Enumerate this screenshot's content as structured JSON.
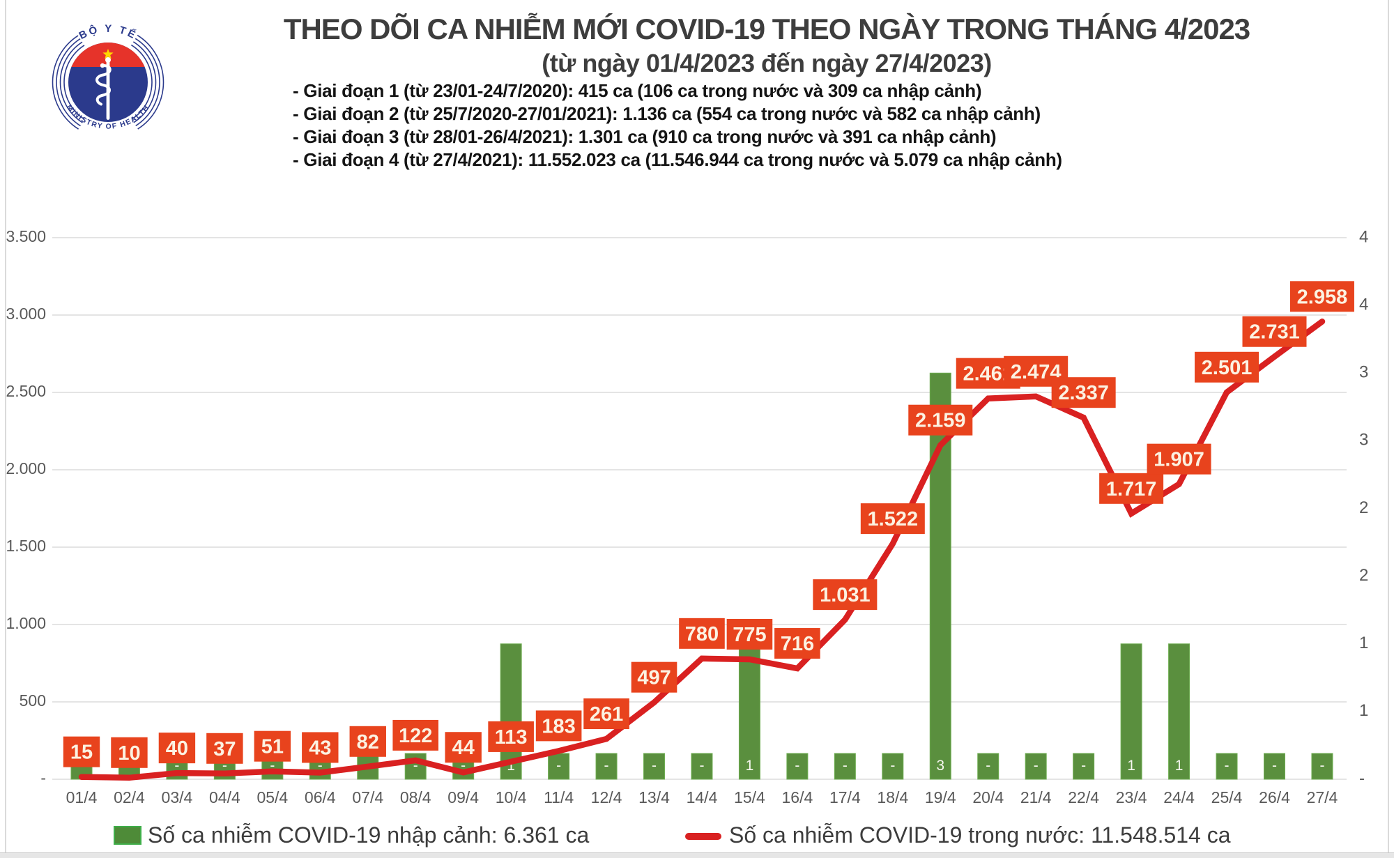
{
  "logo": {
    "top_text": "BỘ Y TẾ",
    "bottom_text": "MINISTRY OF HEALTH"
  },
  "header": {
    "title": "THEO DÕI CA NHIỄM MỚI COVID-19 THEO NGÀY TRONG THÁNG 4/2023",
    "subtitle": "(từ ngày 01/4/2023 đến ngày 27/4/2023)",
    "phases": [
      "- Giai đoạn 1 (từ 23/01-24/7/2020): 415 ca (106 ca trong nước và 309 ca nhập cảnh)",
      "- Giai đoạn 2 (từ 25/7/2020-27/01/2021): 1.136 ca (554 ca trong nước và 582 ca nhập cảnh)",
      "- Giai đoạn 3 (từ 28/01-26/4/2021): 1.301 ca (910 ca trong nước và 391 ca nhập cảnh)",
      "- Giai đoạn 4 (từ 27/4/2021): 11.552.023 ca (11.546.944 ca trong nước và 5.079 ca nhập cảnh)"
    ]
  },
  "chart_data": {
    "type": "combo-bar-line",
    "categories": [
      "01/4",
      "02/4",
      "03/4",
      "04/4",
      "05/4",
      "06/4",
      "07/4",
      "08/4",
      "09/4",
      "10/4",
      "11/4",
      "12/4",
      "13/4",
      "14/4",
      "15/4",
      "16/4",
      "17/4",
      "18/4",
      "19/4",
      "20/4",
      "21/4",
      "22/4",
      "23/4",
      "24/4",
      "25/4",
      "26/4",
      "27/4"
    ],
    "series": [
      {
        "name": "Số ca nhiễm COVID-19 nhập cảnh",
        "type": "bar",
        "axis": "right",
        "values": [
          0,
          0,
          0,
          0,
          0,
          0,
          0,
          0,
          0,
          1,
          0,
          0,
          0,
          0,
          1,
          0,
          0,
          0,
          3,
          0,
          0,
          0,
          1,
          1,
          0,
          0,
          0
        ],
        "labels": [
          "-",
          "-",
          "-",
          "-",
          "-",
          "-",
          "-",
          "-",
          "-",
          "1",
          "-",
          "-",
          "-",
          "-",
          "1",
          "-",
          "-",
          "-",
          "3",
          "-",
          "-",
          "-",
          "1",
          "1",
          "-",
          "-",
          "-"
        ]
      },
      {
        "name": "Số ca nhiễm COVID-19 trong nước",
        "type": "line",
        "axis": "left",
        "values": [
          15,
          10,
          40,
          37,
          51,
          43,
          82,
          122,
          44,
          113,
          183,
          261,
          497,
          780,
          775,
          716,
          1031,
          1522,
          2159,
          2461,
          2474,
          2337,
          1717,
          1907,
          2501,
          2731,
          2958
        ],
        "labels": [
          "15",
          "10",
          "40",
          "37",
          "51",
          "43",
          "82",
          "122",
          "44",
          "113",
          "183",
          "261",
          "497",
          "780",
          "775",
          "716",
          "1.031",
          "1.522",
          "2.159",
          "2.461",
          "2.474",
          "2.337",
          "1.717",
          "1.907",
          "2.501",
          "2.731",
          "2.958"
        ]
      }
    ],
    "left_axis": {
      "min": 0,
      "max": 3500,
      "ticks": [
        "3.500",
        "3.000",
        "2.500",
        "2.000",
        "1.500",
        "1.000",
        "500",
        "-"
      ]
    },
    "right_axis": {
      "min": 0,
      "max": 4,
      "ticks": [
        "4",
        "4",
        "3",
        "3",
        "2",
        "2",
        "1",
        "1",
        "-"
      ]
    },
    "grid": true,
    "legend_position": "bottom",
    "colors": {
      "bar_fill": "#5a8f3e",
      "bar_edge": "#6fae52",
      "line": "#d92121",
      "label_box": "#e8431d",
      "label_text": "#fcf2e2",
      "bar_label_text": "#f7f7f0",
      "grid": "#dcdcdc",
      "tick_text": "#595959"
    }
  },
  "legend": {
    "bar_label": "Số ca nhiễm COVID-19 nhập cảnh: 6.361 ca",
    "line_label": "Số ca nhiễm COVID-19 trong nước: 11.548.514 ca"
  }
}
